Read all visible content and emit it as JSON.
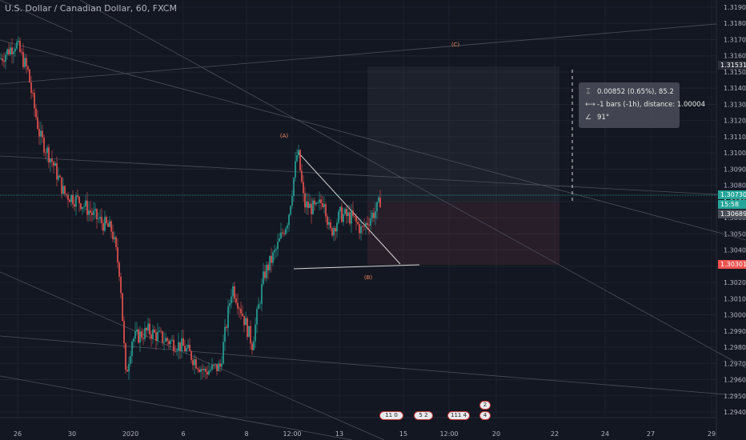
{
  "header": {
    "symbol_title": "U.S. Dollar / Canadian Dollar, 60, FXCM"
  },
  "colors": {
    "background": "#131722",
    "up": "#26a69a",
    "down": "#ef5350",
    "grid": "#1e222d",
    "current_price_line": "#26a69a",
    "tag_bid": "#ef5350"
  },
  "annotations": {
    "wave_a": "(A)",
    "wave_b": "(B)",
    "wave_c": "(C)"
  },
  "measure": {
    "price_change": "0.00852 (0.65%), 85.2",
    "bars_distance": "-1 bars (-1h), distance: 1.00004",
    "angle": "91°",
    "icons": [
      "price-range-icon",
      "bar-range-icon",
      "angle-icon"
    ]
  },
  "price_tags": {
    "upper": "1.31531",
    "current": "1.30730",
    "countdown": "15:58",
    "secondary": "1.30689",
    "lower": "1.30301"
  },
  "event_badges": [
    {
      "label": "11 0",
      "date": "14"
    },
    {
      "label": "5 2",
      "date": "16"
    },
    {
      "label": "111 4",
      "date": "17"
    },
    {
      "label": "2",
      "date": "19"
    },
    {
      "label": "4",
      "date": "19"
    }
  ],
  "chart_data": {
    "type": "candlestick",
    "title": "U.S. Dollar / Canadian Dollar, 60, FXCM",
    "xlabel": "",
    "ylabel": "",
    "ylim": [
      1.293,
      1.3195
    ],
    "grid": true,
    "y_ticks": [
      "1.29400",
      "1.29500",
      "1.29600",
      "1.29700",
      "1.29800",
      "1.29900",
      "1.30000",
      "1.30100",
      "1.30200",
      "1.30300",
      "1.30400",
      "1.30500",
      "1.30600",
      "1.30700",
      "1.30800",
      "1.30900",
      "1.31000",
      "1.31100",
      "1.31200",
      "1.31300",
      "1.31400",
      "1.31500",
      "1.31600",
      "1.31700",
      "1.31800",
      "1.31900"
    ],
    "x_ticks": [
      "26",
      "30",
      "2020",
      "6",
      "8",
      "12:00",
      "13",
      "15",
      "12:00",
      "20",
      "22",
      "24",
      "27",
      "29"
    ],
    "price_path": [
      [
        0,
        1.3158
      ],
      [
        20,
        1.3168
      ],
      [
        35,
        1.315
      ],
      [
        40,
        1.3135
      ],
      [
        50,
        1.311
      ],
      [
        65,
        1.3095
      ],
      [
        80,
        1.3075
      ],
      [
        100,
        1.307
      ],
      [
        120,
        1.306
      ],
      [
        140,
        1.3052
      ],
      [
        150,
        1.3025
      ],
      [
        157,
        1.2962
      ],
      [
        165,
        1.2985
      ],
      [
        185,
        1.299
      ],
      [
        205,
        1.2985
      ],
      [
        230,
        1.298
      ],
      [
        255,
        1.2965
      ],
      [
        275,
        1.2968
      ],
      [
        290,
        1.3018
      ],
      [
        300,
        1.3005
      ],
      [
        315,
        1.2982
      ],
      [
        330,
        1.3025
      ],
      [
        345,
        1.304
      ],
      [
        360,
        1.306
      ],
      [
        372,
        1.3102
      ],
      [
        380,
        1.3068
      ],
      [
        395,
        1.3065
      ],
      [
        405,
        1.3072
      ],
      [
        412,
        1.305
      ],
      [
        425,
        1.3062
      ],
      [
        440,
        1.306
      ],
      [
        452,
        1.3052
      ],
      [
        462,
        1.306
      ],
      [
        472,
        1.3066
      ],
      [
        476,
        1.3073
      ]
    ]
  }
}
